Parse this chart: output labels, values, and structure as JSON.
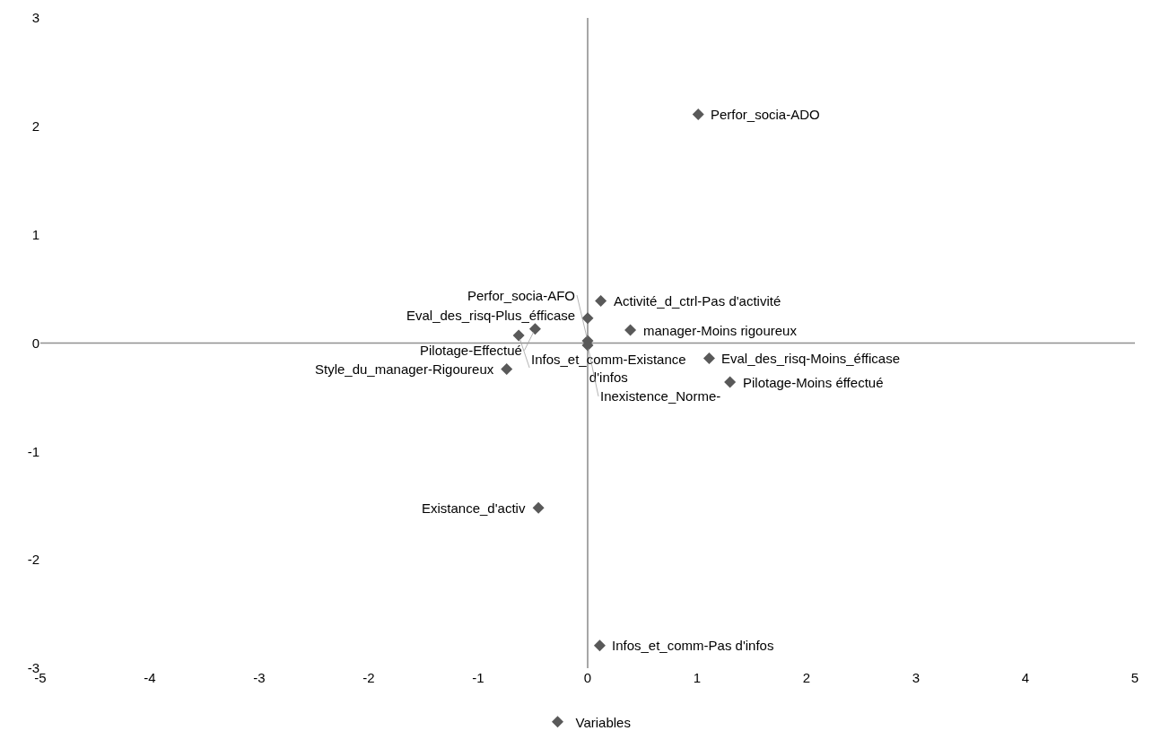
{
  "chart_data": {
    "type": "scatter",
    "x": [
      1.01,
      0.12,
      -0.48,
      -0.63,
      -0.74,
      0.0,
      0.0,
      0.0,
      0.39,
      1.11,
      1.3,
      -0.45,
      0.11
    ],
    "series": [
      {
        "name": "Variables",
        "color": "#595959",
        "values": [
          2.11,
          0.39,
          0.13,
          0.07,
          -0.24,
          0.23,
          0.02,
          -0.02,
          0.12,
          -0.14,
          -0.36,
          -1.52,
          -2.79
        ]
      }
    ],
    "xlim": [
      -5,
      5
    ],
    "ylim": [
      -3,
      3
    ],
    "xticks": [
      -5,
      -4,
      -3,
      -2,
      -1,
      0,
      1,
      2,
      3,
      4,
      5
    ],
    "yticks": [
      -3,
      -2,
      -1,
      0,
      1,
      2,
      3
    ],
    "marker": "diamond",
    "legend": "bottom",
    "ref_lines": [
      {
        "axis": "x",
        "value": 0,
        "color": "#8a8a8a"
      },
      {
        "axis": "y",
        "value": 0,
        "color": "#909090"
      }
    ],
    "annotations": [
      {
        "text": "Perfor_socia-ADO",
        "x": 1.01,
        "y": 2.11
      },
      {
        "text": "Eval_des_risq-Plus_éfficase",
        "x": 0.0,
        "y": 0.23
      },
      {
        "text": "Activité_d_ctrl-Pas d'activité",
        "x": 0.12,
        "y": 0.39
      },
      {
        "text": "Pilotage-Effectué",
        "x": -0.48,
        "y": 0.13
      },
      {
        "text": "Infos_et_comm-Existance\nd'infos",
        "x": -0.63,
        "y": 0.07
      },
      {
        "text": "manager-Moins rigoureux",
        "x": 0.39,
        "y": 0.12
      },
      {
        "text": "Perfor_socia-AFO",
        "x": 0.0,
        "y": 0.02
      },
      {
        "text": "Inexistence_Norme-",
        "x": 0.0,
        "y": -0.02
      },
      {
        "text": "Eval_des_risq-Moins_éfficase",
        "x": 1.11,
        "y": -0.14
      },
      {
        "text": "Style_du_manager-Rigoureux",
        "x": -0.74,
        "y": -0.24
      },
      {
        "text": "Pilotage-Moins éffectué",
        "x": 1.3,
        "y": -0.36
      },
      {
        "text": "Existance_d'activ",
        "x": -0.45,
        "y": -1.52
      },
      {
        "text": "Infos_et_comm-Pas d'infos",
        "x": 0.11,
        "y": -2.79
      }
    ]
  }
}
